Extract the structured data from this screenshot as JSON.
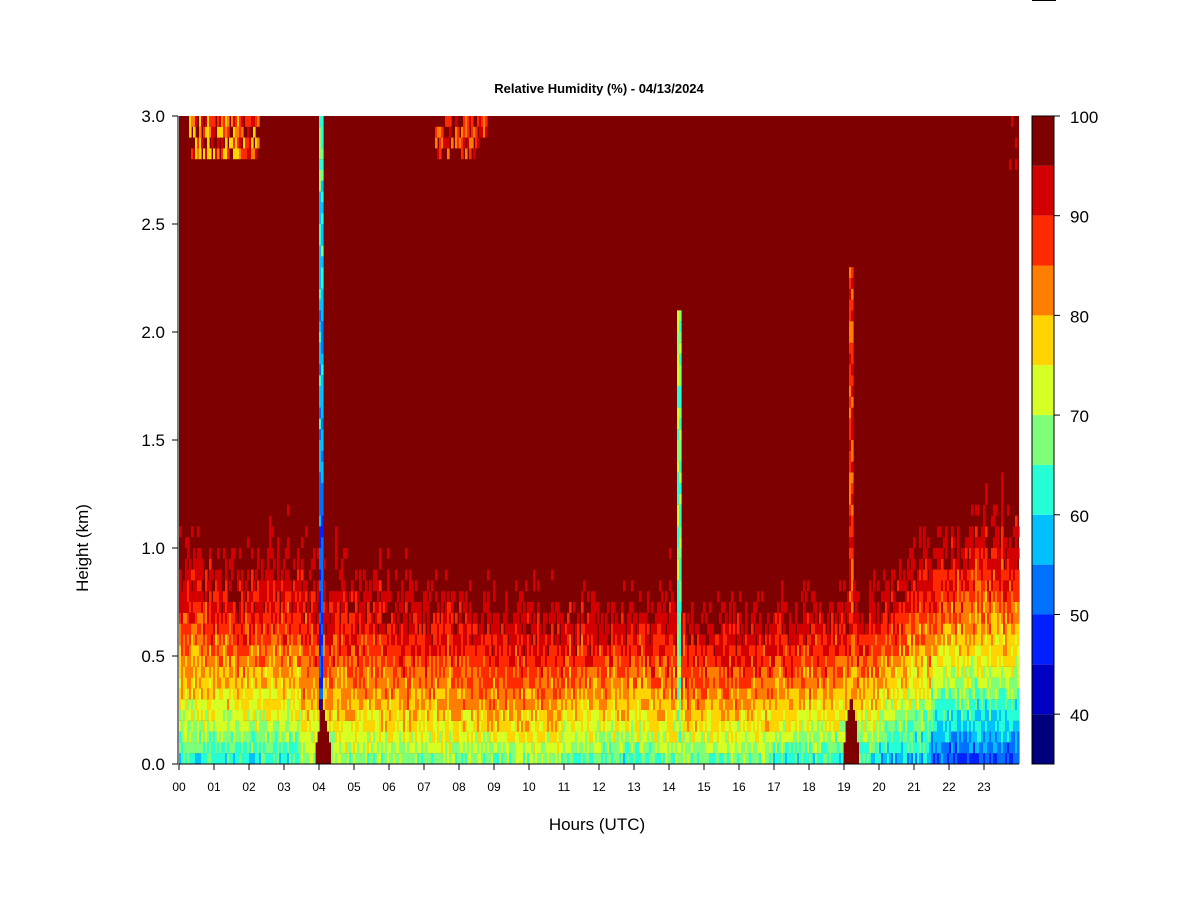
{
  "chart_data": {
    "type": "heatmap",
    "title": "Relative Humidity (%) - 04/13/2024",
    "xlabel": "Hours (UTC)",
    "ylabel": "Height (km)",
    "x_ticks": [
      "00",
      "01",
      "02",
      "03",
      "04",
      "05",
      "06",
      "07",
      "08",
      "09",
      "10",
      "11",
      "12",
      "13",
      "14",
      "15",
      "16",
      "17",
      "18",
      "19",
      "20",
      "21",
      "22",
      "23"
    ],
    "xlim": [
      0,
      24
    ],
    "y_ticks": [
      "0.0",
      "0.5",
      "1.0",
      "1.5",
      "2.0",
      "2.5",
      "3.0"
    ],
    "ylim": [
      0,
      3.0
    ],
    "colorbar": {
      "levels": [
        35,
        40,
        45,
        50,
        55,
        60,
        65,
        70,
        75,
        80,
        85,
        90,
        95,
        100
      ],
      "tick_labels": [
        "40",
        "50",
        "60",
        "70",
        "80",
        "90",
        "100"
      ],
      "colors": [
        "#00007f",
        "#0000c4",
        "#0020ff",
        "#0070ff",
        "#00c0ff",
        "#24ffd6",
        "#7dff7a",
        "#d6ff24",
        "#ffd400",
        "#ff7d00",
        "#ff2a00",
        "#d40000",
        "#7f0000"
      ]
    },
    "moist_layer_top_km": [
      {
        "hour": 0,
        "value": 1.05
      },
      {
        "hour": 1,
        "value": 1.05
      },
      {
        "hour": 2,
        "value": 1.05
      },
      {
        "hour": 3,
        "value": 1.1
      },
      {
        "hour": 4,
        "value": 1.0
      },
      {
        "hour": 5,
        "value": 0.95
      },
      {
        "hour": 6,
        "value": 0.95
      },
      {
        "hour": 7,
        "value": 0.9
      },
      {
        "hour": 8,
        "value": 0.9
      },
      {
        "hour": 9,
        "value": 0.85
      },
      {
        "hour": 10,
        "value": 0.85
      },
      {
        "hour": 11,
        "value": 0.8
      },
      {
        "hour": 12,
        "value": 0.8
      },
      {
        "hour": 13,
        "value": 0.85
      },
      {
        "hour": 14,
        "value": 0.85
      },
      {
        "hour": 15,
        "value": 0.8
      },
      {
        "hour": 16,
        "value": 0.8
      },
      {
        "hour": 17,
        "value": 0.8
      },
      {
        "hour": 18,
        "value": 0.85
      },
      {
        "hour": 19,
        "value": 0.85
      },
      {
        "hour": 20,
        "value": 0.9
      },
      {
        "hour": 21,
        "value": 1.0
      },
      {
        "hour": 22,
        "value": 1.15
      },
      {
        "hour": 23,
        "value": 1.2
      },
      {
        "hour": 24,
        "value": 1.2
      }
    ],
    "features": [
      {
        "kind": "dry-column",
        "hour": 4.05,
        "height_range_km": [
          0,
          3.0
        ],
        "min_rh": 40
      },
      {
        "kind": "saturated-dip",
        "hour": 4.1,
        "height_range_km": [
          0,
          0.25
        ],
        "rh": 100
      },
      {
        "kind": "dry-streak",
        "hour": 14.3,
        "height_range_km": [
          0,
          2.1
        ],
        "min_rh": 60
      },
      {
        "kind": "dry-streak",
        "hour": 19.2,
        "height_range_km": [
          0.3,
          2.3
        ],
        "min_rh": 80
      },
      {
        "kind": "saturated-dip",
        "hour": 19.2,
        "height_range_km": [
          0,
          0.3
        ],
        "rh": 100
      },
      {
        "kind": "dry-patch",
        "hour_range": [
          0.3,
          2.3
        ],
        "height_range_km": [
          2.8,
          3.0
        ],
        "min_rh": 75
      },
      {
        "kind": "dry-patch",
        "hour_range": [
          7.3,
          8.8
        ],
        "height_range_km": [
          2.8,
          3.0
        ],
        "min_rh": 80
      },
      {
        "kind": "dry-patch",
        "hour_range": [
          23.7,
          24
        ],
        "height_range_km": [
          2.75,
          3.0
        ],
        "min_rh": 90
      }
    ]
  }
}
